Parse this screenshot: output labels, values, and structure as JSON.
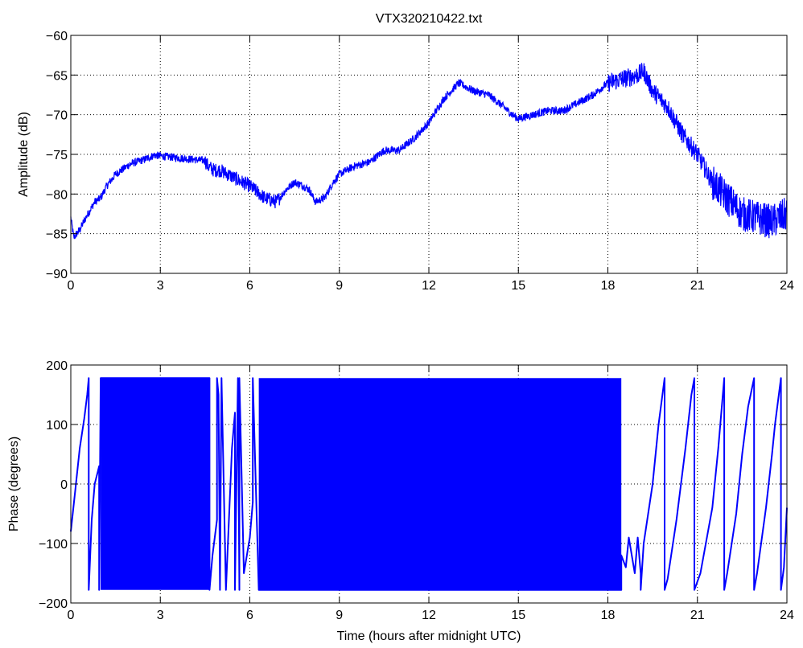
{
  "chart_data": [
    {
      "type": "line",
      "title": "VTX320210422.txt",
      "xlabel": "",
      "ylabel": "Amplitude (dB)",
      "xlim": [
        0,
        24
      ],
      "ylim": [
        -90,
        -60
      ],
      "xticks": [
        0,
        3,
        6,
        9,
        12,
        15,
        18,
        21,
        24
      ],
      "yticks": [
        -90,
        -85,
        -80,
        -75,
        -70,
        -65,
        -60
      ],
      "grid": true,
      "series": [
        {
          "color": "#0000ff",
          "x": [
            0.0,
            0.1,
            0.3,
            0.5,
            0.8,
            1.0,
            1.2,
            1.5,
            2.0,
            2.5,
            2.8,
            3.0,
            3.5,
            4.0,
            4.5,
            4.6,
            4.8,
            5.0,
            5.5,
            6.0,
            6.5,
            6.9,
            7.2,
            7.5,
            7.8,
            8.0,
            8.2,
            8.5,
            8.8,
            9.0,
            9.5,
            10.0,
            10.5,
            11.0,
            11.5,
            12.0,
            12.5,
            13.0,
            13.5,
            14.0,
            14.5,
            14.8,
            15.0,
            15.5,
            16.0,
            16.5,
            17.0,
            17.5,
            18.0,
            18.5,
            19.0,
            19.2,
            19.5,
            20.0,
            20.5,
            21.0,
            21.5,
            22.0,
            22.5,
            23.0,
            23.5,
            24.0
          ],
          "values": [
            -83,
            -85.5,
            -84.5,
            -83,
            -81,
            -80.5,
            -79,
            -77.5,
            -76.2,
            -75.6,
            -75.1,
            -75.2,
            -75.4,
            -75.6,
            -75.8,
            -76.5,
            -77,
            -77,
            -78,
            -79,
            -80.5,
            -81,
            -79.5,
            -78.5,
            -79,
            -79.5,
            -81,
            -80.5,
            -78.5,
            -77.5,
            -76.5,
            -76,
            -74.5,
            -74.5,
            -73,
            -71,
            -68,
            -66,
            -67,
            -67.5,
            -69,
            -70,
            -70.5,
            -70,
            -69.5,
            -69.5,
            -68.5,
            -67.5,
            -66,
            -65.5,
            -65,
            -64.5,
            -67,
            -69,
            -72.5,
            -75,
            -78.5,
            -80.5,
            -82.5,
            -83,
            -83.5,
            -82.5
          ]
        }
      ]
    },
    {
      "type": "line",
      "title": "",
      "xlabel": "Time (hours after midnight UTC)",
      "ylabel": "Phase (degrees)",
      "xlim": [
        0,
        24
      ],
      "ylim": [
        -200,
        200
      ],
      "xticks": [
        0,
        3,
        6,
        9,
        12,
        15,
        18,
        21,
        24
      ],
      "yticks": [
        -200,
        -100,
        0,
        100,
        200
      ],
      "grid": true,
      "dense_bands": [
        [
          1.0,
          4.65
        ],
        [
          6.3,
          18.45
        ]
      ],
      "phase_range": [
        -178,
        178
      ],
      "series": [
        {
          "color": "#0000ff",
          "x": [
            0.0,
            0.15,
            0.3,
            0.45,
            0.55,
            0.6,
            0.6,
            0.7,
            0.8,
            0.9,
            0.95,
            0.95,
            1.0,
            4.65,
            4.65,
            4.75,
            4.9,
            4.9,
            4.95,
            5.0,
            5.05,
            5.2,
            5.4,
            5.5,
            5.5,
            5.6,
            5.65,
            5.65,
            5.8,
            6.0,
            6.1,
            6.1,
            6.3,
            18.45,
            18.45,
            18.6,
            18.7,
            18.9,
            19.0,
            19.1,
            19.1,
            19.2,
            19.5,
            19.7,
            19.9,
            19.9,
            20.0,
            20.3,
            20.6,
            20.8,
            20.9,
            20.9,
            21.1,
            21.5,
            21.7,
            21.9,
            21.9,
            22.0,
            22.3,
            22.5,
            22.7,
            22.9,
            22.9,
            23.0,
            23.3,
            23.5,
            23.6,
            23.8,
            23.8,
            23.9,
            24.0
          ],
          "values": [
            -80,
            -10,
            60,
            110,
            150,
            178,
            -178,
            -60,
            0,
            20,
            30,
            -178,
            178,
            178,
            -178,
            -120,
            -60,
            178,
            150,
            -178,
            178,
            -178,
            60,
            120,
            -178,
            178,
            -178,
            178,
            -150,
            -90,
            -30,
            178,
            -178,
            -178,
            -120,
            -140,
            -90,
            -150,
            -90,
            -150,
            -178,
            -100,
            0,
            100,
            178,
            -178,
            -160,
            -60,
            60,
            150,
            178,
            -178,
            -150,
            -40,
            60,
            178,
            -178,
            -150,
            -50,
            50,
            130,
            178,
            -178,
            -150,
            -40,
            50,
            100,
            178,
            -178,
            -140,
            -40
          ]
        }
      ]
    }
  ]
}
